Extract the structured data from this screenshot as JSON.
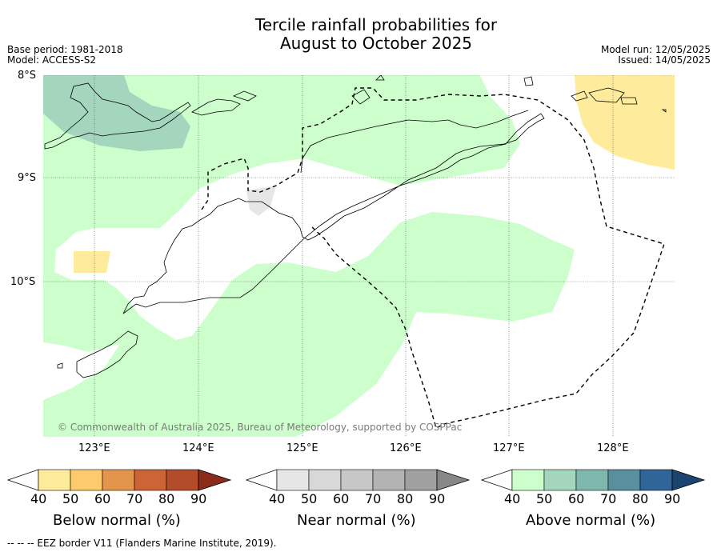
{
  "title_line1": "Tercile rainfall probabilities for",
  "title_line2": "August to October 2025",
  "base_period": "Base period: 1981-2018",
  "model": "Model: ACCESS-S2",
  "model_run": "Model run: 12/05/2025",
  "issued": "Issued: 14/05/2025",
  "map": {
    "lat_labels": [
      "8°S",
      "9°S",
      "10°S"
    ],
    "lon_labels": [
      "123°E",
      "124°E",
      "125°E",
      "126°E",
      "127°E",
      "128°E"
    ],
    "copyright": "© Commonwealth of Australia 2025, Bureau of Meteorology, supported by COSPPac",
    "colors": {
      "below_50": "#feeb9b",
      "near_40": "#e6e6e6",
      "above_40": "#ccffcc",
      "above_50": "#a3d6bd",
      "coast": "#000000",
      "eez": "#000000"
    }
  },
  "colorbars": [
    {
      "label": "Below normal (%)",
      "ticks": [
        "40",
        "50",
        "60",
        "70",
        "80",
        "90"
      ],
      "colors": [
        "#feeb9b",
        "#fdcb6b",
        "#e3954c",
        "#cd6436",
        "#b34c2a",
        "#8b2b1c"
      ]
    },
    {
      "label": "Near normal (%)",
      "ticks": [
        "40",
        "50",
        "60",
        "70",
        "80",
        "90"
      ],
      "colors": [
        "#e6e6e6",
        "#d8d8d8",
        "#c7c7c7",
        "#b3b3b3",
        "#a0a0a0",
        "#878787"
      ]
    },
    {
      "label": "Above normal (%)",
      "ticks": [
        "40",
        "50",
        "60",
        "70",
        "80",
        "90"
      ],
      "colors": [
        "#ccffcc",
        "#a3d6bd",
        "#7eb8ad",
        "#5a8f9d",
        "#2f6598",
        "#1c4470"
      ]
    }
  ],
  "footer": "--  --  -- EEZ border V11 (Flanders Marine Institute, 2019)."
}
